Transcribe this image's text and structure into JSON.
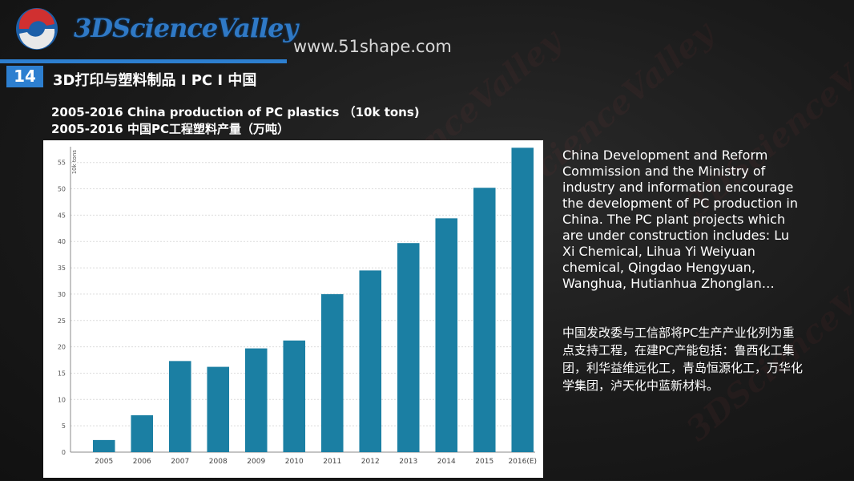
{
  "header": {
    "logo_text": "3DScienceValley",
    "website": "www.51shape.com",
    "slide_number": "14",
    "title": "3D打印与塑料制品 I PC I 中国"
  },
  "subtitle_en": "2005-2016 China production of PC plastics （10k tons)",
  "subtitle_cn": "2005-2016 中国PC工程塑料产量（万吨）",
  "description": {
    "en": "China Development and Reform Commission and the Ministry of industry and information encourage the development of PC production in China. The PC plant projects which are under construction includes: Lu Xi Chemical, Lihua Yi Weiyuan chemical, Qingdao Hengyuan, Wanghua, Hutianhua Zhonglan…",
    "cn": "中国发改委与工信部将PC生产产业化列为重点支持工程，在建PC产能包括：鲁西化工集团，利华益维远化工，青岛恒源化工，万华化学集团，泸天化中蓝新材料。"
  },
  "colors": {
    "bar": "#1b7fa3",
    "accent": "#2d7fd0"
  },
  "chart_data": {
    "type": "bar",
    "ylabel": "10k tons",
    "categories": [
      "2005",
      "2006",
      "2007",
      "2008",
      "2009",
      "2010",
      "2011",
      "2012",
      "2013",
      "2014",
      "2015",
      "2016(E)"
    ],
    "values": [
      2.3,
      7.0,
      17.3,
      16.2,
      19.7,
      21.2,
      30.0,
      34.5,
      39.7,
      44.4,
      50.2,
      57.8
    ],
    "ylim": [
      0,
      58
    ],
    "yticks": [
      0,
      5,
      10,
      15,
      20,
      25,
      30,
      35,
      40,
      45,
      50,
      55
    ],
    "grid": true
  }
}
